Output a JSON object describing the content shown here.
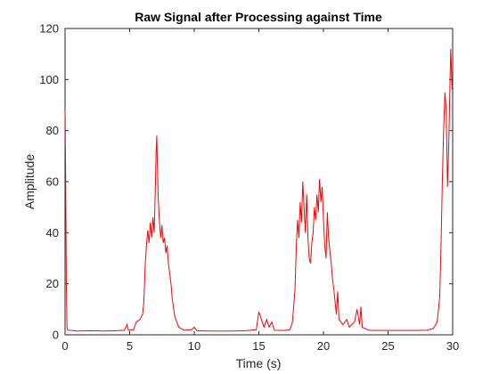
{
  "chart_data": {
    "type": "line",
    "title": "Raw Signal after Processing against Time",
    "xlabel": "Time (s)",
    "ylabel": "Amplitude",
    "xlim": [
      0,
      30
    ],
    "ylim": [
      0,
      120
    ],
    "xticks": [
      0,
      5,
      10,
      15,
      20,
      25,
      30
    ],
    "yticks": [
      0,
      20,
      40,
      60,
      80,
      100,
      120
    ],
    "grid": false,
    "series": [
      {
        "color": "#ff0000",
        "points": [
          [
            0,
            88
          ],
          [
            0.05,
            60
          ],
          [
            0.1,
            20
          ],
          [
            0.15,
            3
          ],
          [
            0.2,
            1.8
          ],
          [
            1,
            1.5
          ],
          [
            2,
            1.6
          ],
          [
            3,
            1.5
          ],
          [
            4,
            1.6
          ],
          [
            4.6,
            1.8
          ],
          [
            4.8,
            4
          ],
          [
            4.9,
            1.8
          ],
          [
            5.3,
            1.9
          ],
          [
            5.5,
            5
          ],
          [
            5.8,
            6
          ],
          [
            6.0,
            8
          ],
          [
            6.1,
            13
          ],
          [
            6.2,
            27
          ],
          [
            6.3,
            35
          ],
          [
            6.4,
            41
          ],
          [
            6.5,
            36
          ],
          [
            6.6,
            44
          ],
          [
            6.7,
            38
          ],
          [
            6.8,
            46
          ],
          [
            6.9,
            40
          ],
          [
            7.0,
            60
          ],
          [
            7.05,
            72
          ],
          [
            7.1,
            78
          ],
          [
            7.15,
            66
          ],
          [
            7.2,
            55
          ],
          [
            7.3,
            45
          ],
          [
            7.4,
            38
          ],
          [
            7.5,
            43
          ],
          [
            7.6,
            36
          ],
          [
            7.7,
            38
          ],
          [
            7.8,
            32
          ],
          [
            7.9,
            35
          ],
          [
            8.0,
            28
          ],
          [
            8.1,
            24
          ],
          [
            8.2,
            20
          ],
          [
            8.3,
            14
          ],
          [
            8.5,
            7
          ],
          [
            8.8,
            3
          ],
          [
            9.2,
            1.8
          ],
          [
            9.8,
            2
          ],
          [
            10,
            3
          ],
          [
            10.2,
            1.6
          ],
          [
            11,
            1.5
          ],
          [
            12,
            1.5
          ],
          [
            13,
            1.5
          ],
          [
            14,
            1.6
          ],
          [
            14.8,
            2
          ],
          [
            15.0,
            9
          ],
          [
            15.2,
            6
          ],
          [
            15.4,
            3
          ],
          [
            15.6,
            6
          ],
          [
            15.8,
            3
          ],
          [
            16.0,
            5
          ],
          [
            16.2,
            1.8
          ],
          [
            17,
            1.7
          ],
          [
            17.4,
            2
          ],
          [
            17.6,
            5
          ],
          [
            17.8,
            18
          ],
          [
            17.9,
            35
          ],
          [
            18.0,
            45
          ],
          [
            18.1,
            38
          ],
          [
            18.2,
            52
          ],
          [
            18.3,
            44
          ],
          [
            18.4,
            60
          ],
          [
            18.5,
            50
          ],
          [
            18.6,
            40
          ],
          [
            18.7,
            55
          ],
          [
            18.8,
            38
          ],
          [
            18.9,
            30
          ],
          [
            19.0,
            28
          ],
          [
            19.1,
            36
          ],
          [
            19.2,
            40
          ],
          [
            19.3,
            50
          ],
          [
            19.4,
            45
          ],
          [
            19.5,
            55
          ],
          [
            19.6,
            48
          ],
          [
            19.7,
            61
          ],
          [
            19.8,
            52
          ],
          [
            19.9,
            58
          ],
          [
            20.0,
            45
          ],
          [
            20.1,
            35
          ],
          [
            20.2,
            30
          ],
          [
            20.3,
            48
          ],
          [
            20.4,
            38
          ],
          [
            20.5,
            33
          ],
          [
            20.6,
            28
          ],
          [
            20.7,
            22
          ],
          [
            20.8,
            18
          ],
          [
            21.0,
            8
          ],
          [
            21.1,
            17
          ],
          [
            21.2,
            6
          ],
          [
            21.5,
            4
          ],
          [
            21.8,
            6
          ],
          [
            22.0,
            3
          ],
          [
            22.4,
            5
          ],
          [
            22.6,
            10
          ],
          [
            22.8,
            4
          ],
          [
            22.9,
            11
          ],
          [
            23.0,
            3
          ],
          [
            23.5,
            1.8
          ],
          [
            24,
            1.7
          ],
          [
            25,
            1.7
          ],
          [
            26,
            1.7
          ],
          [
            27,
            1.7
          ],
          [
            28,
            1.8
          ],
          [
            28.5,
            2.5
          ],
          [
            28.8,
            5
          ],
          [
            29.0,
            15
          ],
          [
            29.1,
            35
          ],
          [
            29.2,
            60
          ],
          [
            29.3,
            80
          ],
          [
            29.4,
            95
          ],
          [
            29.5,
            88
          ],
          [
            29.6,
            58
          ],
          [
            29.7,
            75
          ],
          [
            29.8,
            100
          ],
          [
            29.85,
            112
          ],
          [
            29.9,
            105
          ],
          [
            29.95,
            96
          ],
          [
            30.0,
            98
          ]
        ]
      }
    ]
  }
}
